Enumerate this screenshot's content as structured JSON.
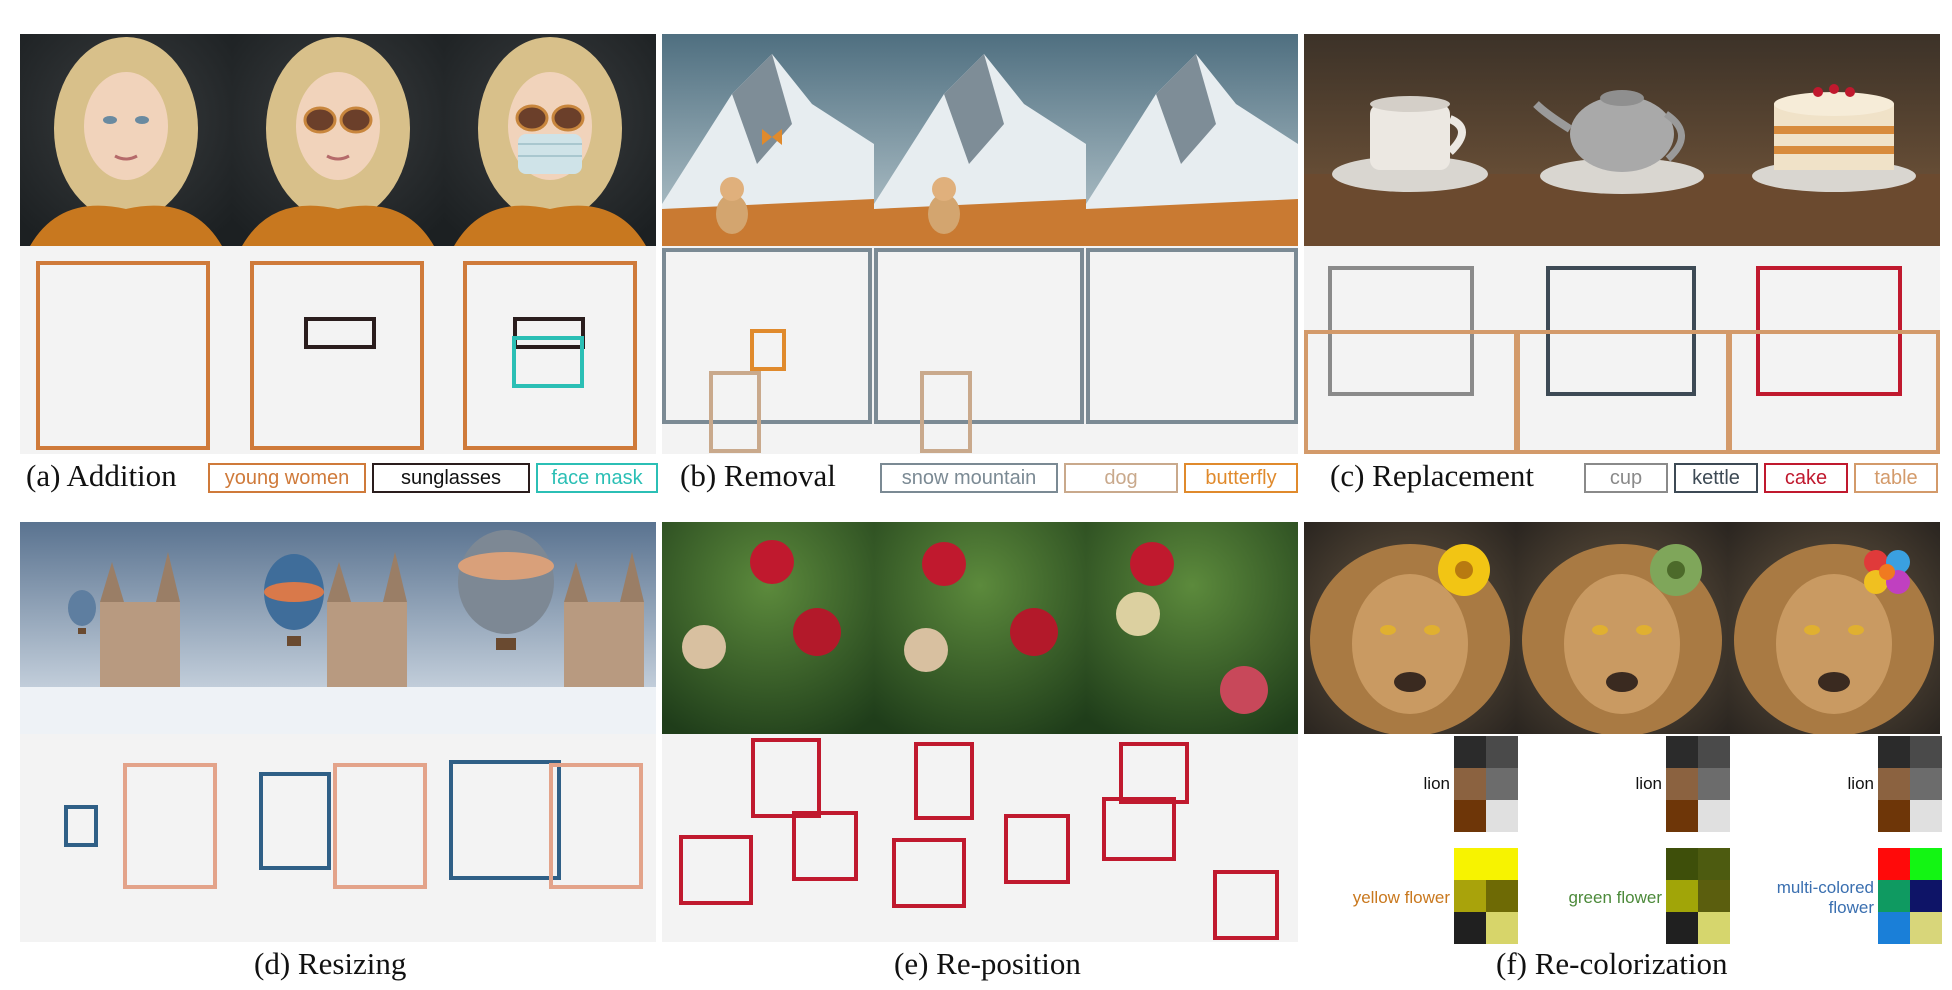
{
  "panels": {
    "a": {
      "caption": "(a) Addition",
      "legend": [
        {
          "label": "young women",
          "color": "#cf7a3a",
          "text_color": "#cf7a3a"
        },
        {
          "label": "sunglasses",
          "color": "#2a1d1d",
          "text_color": "#111111"
        },
        {
          "label": "face mask",
          "color": "#2bbfb5",
          "text_color": "#2bbfb5"
        }
      ],
      "images": [
        "woman-portrait",
        "woman-with-sunglasses",
        "woman-with-sunglasses-and-mask"
      ]
    },
    "b": {
      "caption": "(b) Removal",
      "legend": [
        {
          "label": "snow mountain",
          "color": "#7b8a94",
          "text_color": "#7b8a94"
        },
        {
          "label": "dog",
          "color": "#c9a98c",
          "text_color": "#c9a98c"
        },
        {
          "label": "butterfly",
          "color": "#e08a2c",
          "text_color": "#e08a2c"
        }
      ],
      "images": [
        "mountain-dog-butterfly",
        "mountain-dog",
        "mountain"
      ]
    },
    "c": {
      "caption": "(c) Replacement",
      "legend": [
        {
          "label": "cup",
          "color": "#8a8a8a",
          "text_color": "#8a8a8a"
        },
        {
          "label": "kettle",
          "color": "#3d4a55",
          "text_color": "#3d4a55"
        },
        {
          "label": "cake",
          "color": "#c0192e",
          "text_color": "#c0192e"
        },
        {
          "label": "table",
          "color": "#d39a6a",
          "text_color": "#d39a6a"
        }
      ],
      "images": [
        "cup-on-table",
        "kettle-on-table",
        "cake-on-table"
      ]
    },
    "d": {
      "caption": "(d) Resizing",
      "images": [
        "balloon-small",
        "balloon-medium",
        "balloon-large"
      ]
    },
    "e": {
      "caption": "(e) Re-position",
      "images": [
        "apples-1",
        "apples-2",
        "apples-3"
      ]
    },
    "f": {
      "caption": "(f) Re-colorization",
      "lion_label": "lion",
      "flower_labels": [
        {
          "text": "yellow flower",
          "color": "#c9781e"
        },
        {
          "text": "green flower",
          "color": "#4c8a3a"
        },
        {
          "text": "multi-colored flower",
          "color": "#3a6fb0"
        }
      ],
      "lion_swatches": [
        "#2b2b2b",
        "#4a4a4a",
        "#8b6240",
        "#6c6c6c",
        "#6e3608",
        "#e0e0e0"
      ],
      "flower_swatches": [
        [
          "#f7f300",
          "#f7f300",
          "#a9a30b",
          "#6e6a05",
          "#202020",
          "#d7d56a"
        ],
        [
          "#3e4f0a",
          "#4d5b10",
          "#a1a508",
          "#5b5e0e",
          "#202020",
          "#d6d66d"
        ],
        [
          "#ff0a0a",
          "#13f513",
          "#0f9a61",
          "#0e1467",
          "#1a7fd8",
          "#d8d67a"
        ]
      ],
      "images": [
        "lion-yellow-flower",
        "lion-green-flower",
        "lion-multicolor-flower"
      ]
    }
  },
  "colors": {
    "young_women": "#cf7a3a",
    "sunglasses": "#2a1d1d",
    "face_mask": "#2bbfb5",
    "snow_mountain": "#7b8a94",
    "dog": "#c9a98c",
    "butterfly": "#e08a2c",
    "cup": "#8a8a8a",
    "kettle": "#3d4a55",
    "cake": "#c0192e",
    "table": "#d39a6a",
    "balloon": "#2f5f86",
    "castle": "#e3a38a",
    "apple": "#c0192e"
  }
}
